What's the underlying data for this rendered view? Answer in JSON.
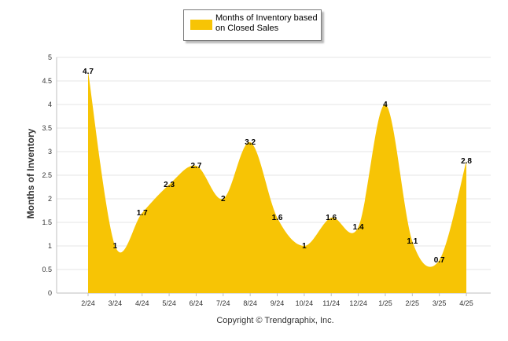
{
  "chart_data": {
    "type": "area",
    "legend": {
      "label": "Months of Inventory based on Closed Sales",
      "placement": "top-center"
    },
    "ylabel": "Months of Inventory",
    "xlabel": "",
    "title": "",
    "ylim": [
      0,
      5
    ],
    "yticks": [
      "0",
      "0.5",
      "1",
      "1.5",
      "2",
      "2.5",
      "3",
      "3.5",
      "4",
      "4.5",
      "5"
    ],
    "grid": true,
    "color": "#F7C405",
    "categories": [
      "2/24",
      "3/24",
      "4/24",
      "5/24",
      "6/24",
      "7/24",
      "8/24",
      "9/24",
      "10/24",
      "11/24",
      "12/24",
      "1/25",
      "2/25",
      "3/25",
      "4/25"
    ],
    "series": [
      {
        "name": "Months of Inventory based on Closed Sales",
        "values": [
          4.7,
          1,
          1.7,
          2.3,
          2.7,
          2,
          3.2,
          1.6,
          1,
          1.6,
          1.4,
          4,
          1.1,
          0.7,
          2.8
        ],
        "labels": [
          "4.7",
          "1",
          "1.7",
          "2.3",
          "2.7",
          "2",
          "3.2",
          "1.6",
          "1",
          "1.6",
          "1.4",
          "4",
          "1.1",
          "0.7",
          "2.8"
        ]
      }
    ]
  },
  "footer": "Copyright © Trendgraphix, Inc."
}
